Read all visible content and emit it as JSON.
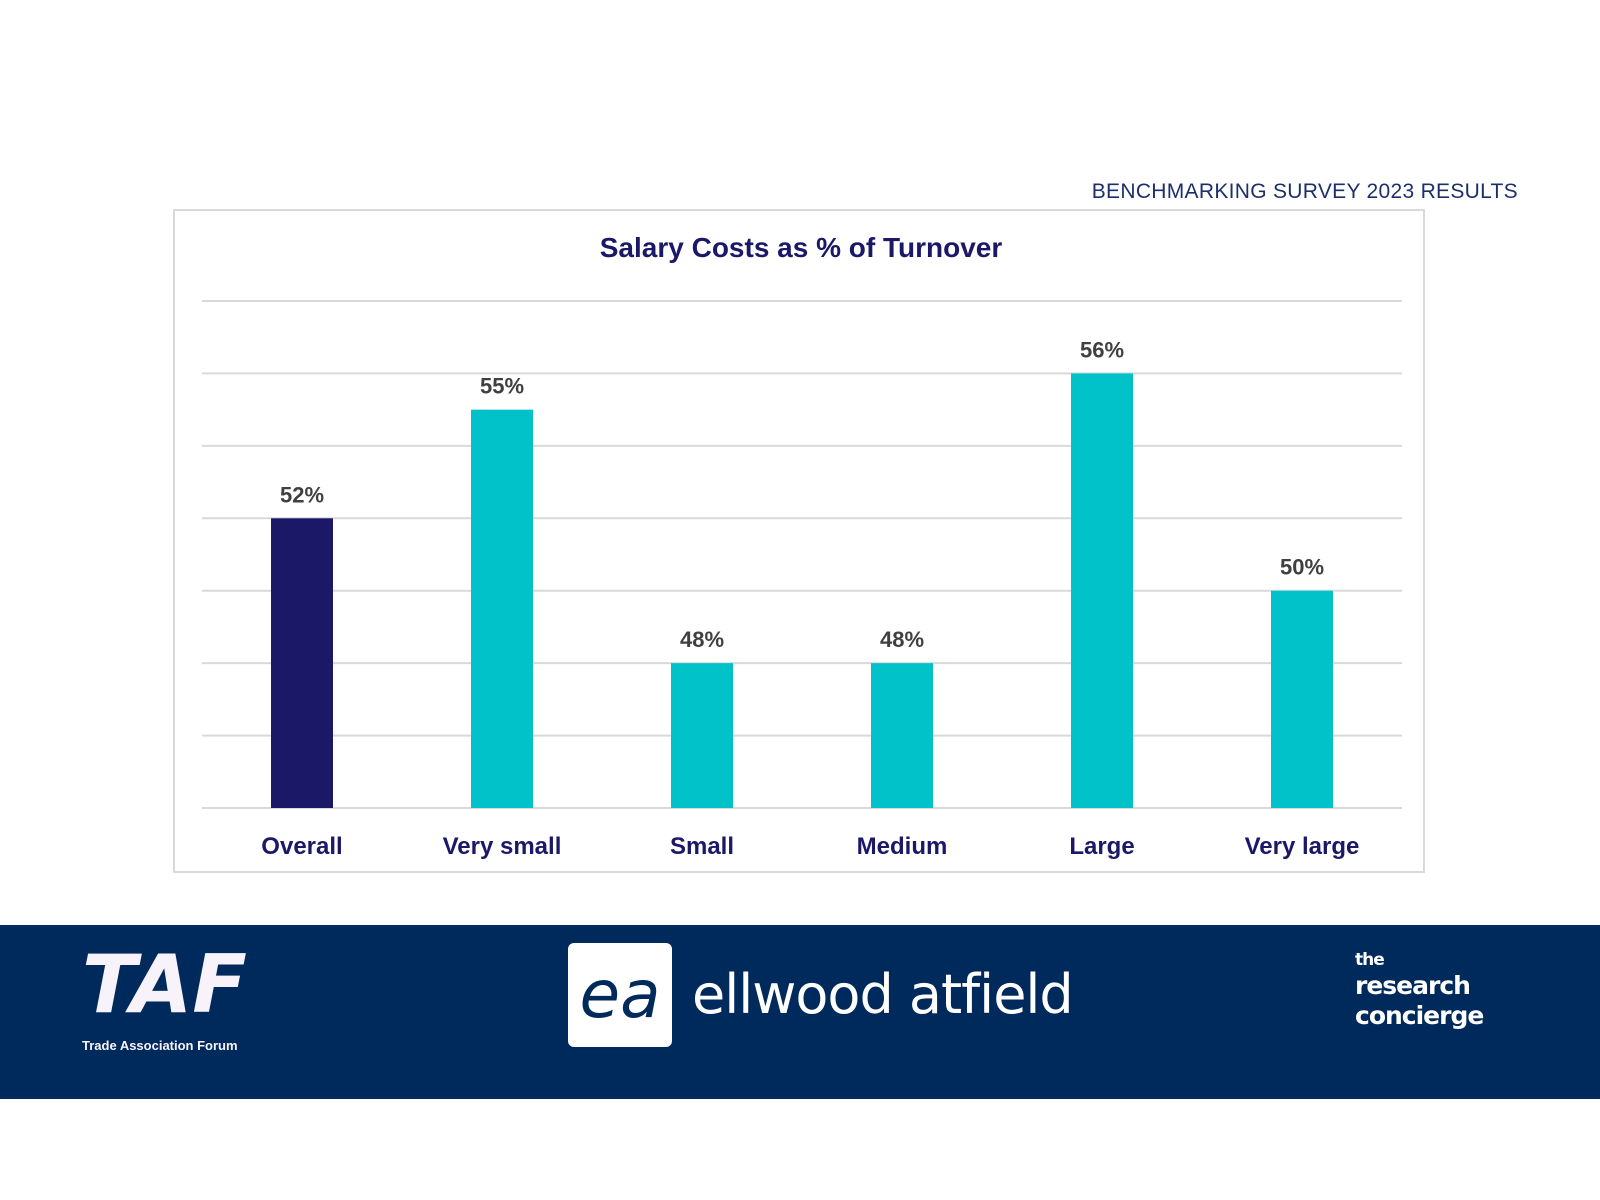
{
  "header": {
    "survey_label": "BENCHMARKING SURVEY 2023 RESULTS"
  },
  "chart_data": {
    "type": "bar",
    "title": "Salary Costs as % of Turnover",
    "categories": [
      "Overall",
      "Very small",
      "Small",
      "Medium",
      "Large",
      "Very large"
    ],
    "values": [
      52,
      55,
      48,
      48,
      56,
      50
    ],
    "data_labels": [
      "52%",
      "55%",
      "48%",
      "48%",
      "56%",
      "50%"
    ],
    "colors": [
      "#1b1868",
      "#00c2c8",
      "#00c2c8",
      "#00c2c8",
      "#00c2c8",
      "#00c2c8"
    ],
    "xlabel": "",
    "ylabel": "",
    "ylim": [
      44,
      58
    ],
    "grid_step": 2,
    "grid": true,
    "legend": "none"
  },
  "footer": {
    "taf_logo": "TAF",
    "taf_subtitle": "Trade Association Forum",
    "ea_logo_mark": "ea",
    "ea_name": "ellwood atfield",
    "trc_the": "the",
    "trc_research": "research",
    "trc_concierge": "concierge"
  }
}
